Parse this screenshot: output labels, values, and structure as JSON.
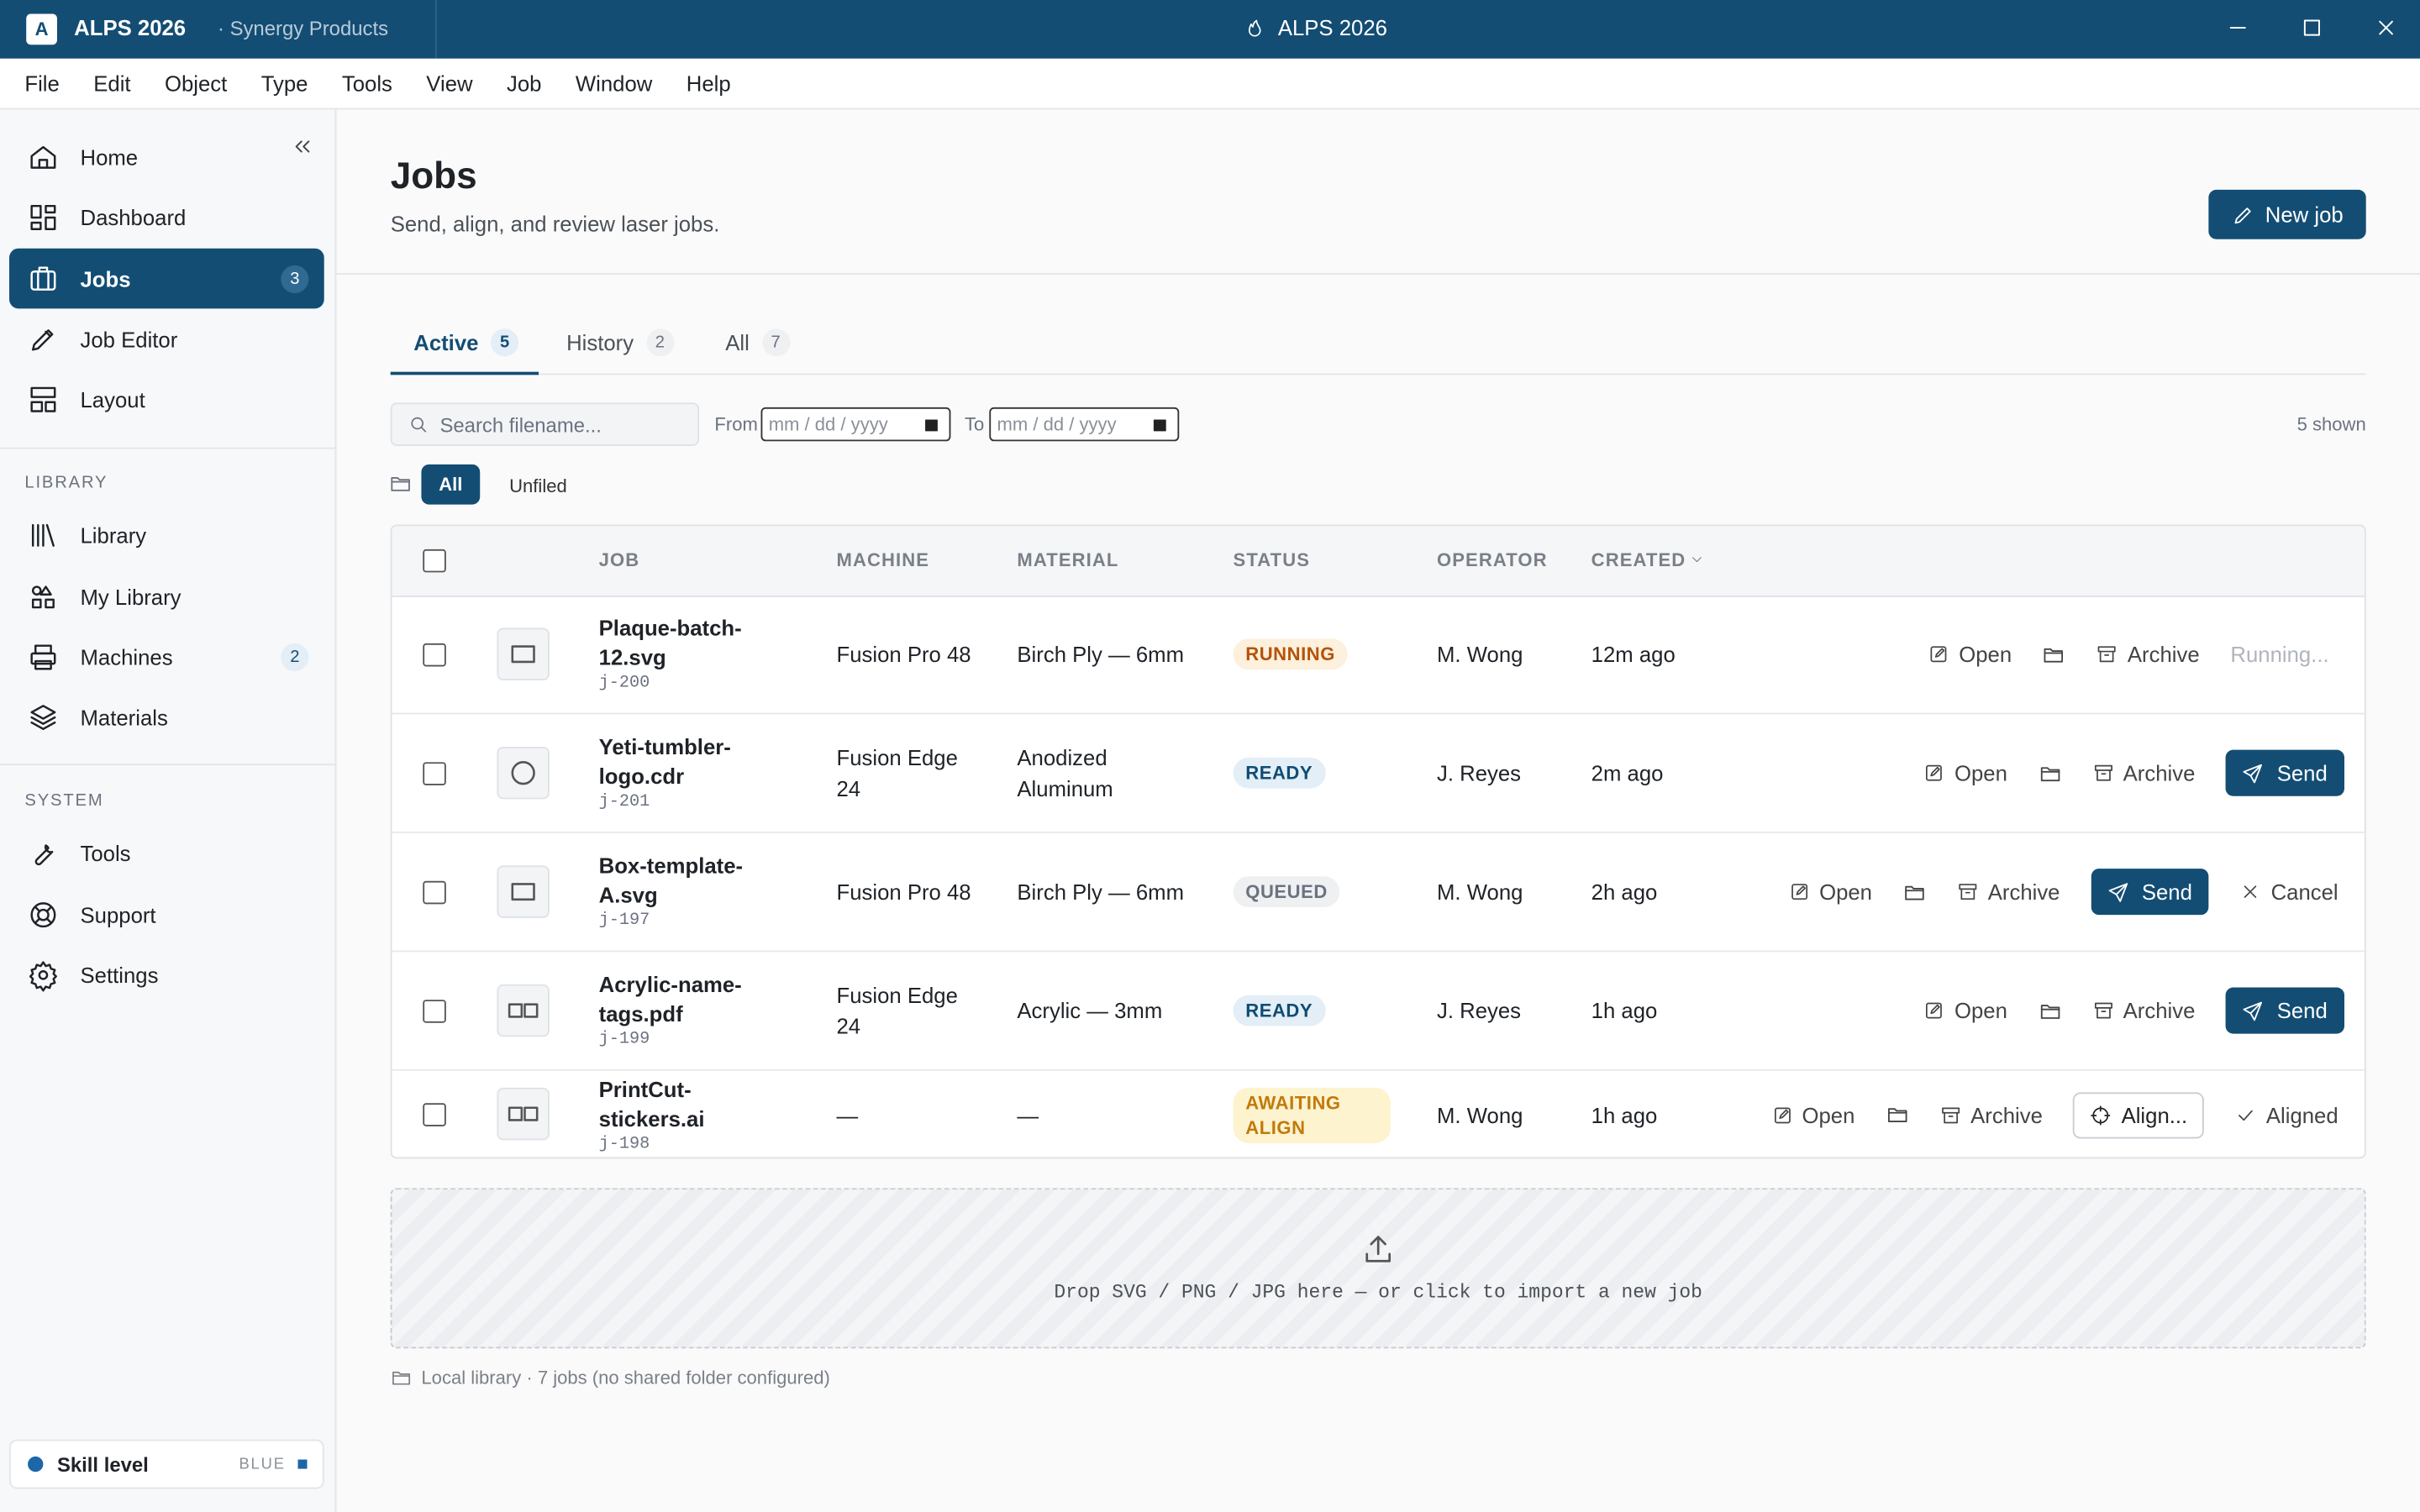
{
  "titlebar": {
    "app_badge": "A",
    "app_name": "ALPS 2026",
    "org": "· Synergy Products",
    "window_title": "ALPS 2026"
  },
  "menu": [
    "File",
    "Edit",
    "Object",
    "Type",
    "Tools",
    "View",
    "Job",
    "Window",
    "Help"
  ],
  "sidebar": {
    "nav": [
      {
        "label": "Home"
      },
      {
        "label": "Dashboard"
      },
      {
        "label": "Jobs",
        "badge": 3
      },
      {
        "label": "Job Editor"
      },
      {
        "label": "Layout"
      }
    ],
    "library_heading": "LIBRARY",
    "library": [
      {
        "label": "Library"
      },
      {
        "label": "My Library"
      },
      {
        "label": "Machines",
        "badge": 2
      },
      {
        "label": "Materials"
      }
    ],
    "system_heading": "SYSTEM",
    "system": [
      {
        "label": "Tools"
      },
      {
        "label": "Support"
      },
      {
        "label": "Settings"
      }
    ],
    "skill": {
      "label": "Skill level",
      "value": "BLUE"
    }
  },
  "header": {
    "title": "Jobs",
    "subtitle": "Send, align, and review laser jobs.",
    "new_job": "New job"
  },
  "tabs": [
    {
      "label": "Active",
      "count": 5
    },
    {
      "label": "History",
      "count": 2
    },
    {
      "label": "All",
      "count": 7
    }
  ],
  "filters": {
    "search_placeholder": "Search filename...",
    "from": "From",
    "to": "To",
    "date_placeholder": "mm / dd / yyyy",
    "shown": "5 shown",
    "folders": [
      "All",
      "Unfiled"
    ]
  },
  "table": {
    "columns": [
      "JOB",
      "MACHINE",
      "MATERIAL",
      "STATUS",
      "OPERATOR",
      "CREATED"
    ],
    "rows": [
      {
        "name": "Plaque-batch-12.svg",
        "id": "j-200",
        "thumb": "rect",
        "machine": "Fusion Pro 48",
        "material": "Birch Ply — 6mm",
        "status": "RUNNING",
        "status_color": "#b45309",
        "status_bg": "#fdf0dc",
        "operator": "M. Wong",
        "created": "12m ago",
        "actions": [
          {
            "kind": "link",
            "label": "Open"
          },
          {
            "kind": "folder"
          },
          {
            "kind": "archive",
            "label": "Archive"
          },
          {
            "kind": "muted",
            "label": "Running..."
          }
        ]
      },
      {
        "name": "Yeti-tumbler-logo.cdr",
        "id": "j-201",
        "thumb": "circle",
        "machine": "Fusion Edge 24",
        "material": "Anodized Aluminum",
        "status": "READY",
        "status_color": "#0f4c75",
        "status_bg": "#e3eef6",
        "operator": "J. Reyes",
        "created": "2m ago",
        "actions": [
          {
            "kind": "link",
            "label": "Open"
          },
          {
            "kind": "folder"
          },
          {
            "kind": "archive",
            "label": "Archive"
          },
          {
            "kind": "primary",
            "label": "Send"
          }
        ]
      },
      {
        "name": "Box-template-A.svg",
        "id": "j-197",
        "thumb": "rect",
        "machine": "Fusion Pro 48",
        "material": "Birch Ply — 6mm",
        "status": "QUEUED",
        "status_color": "#6b7280",
        "status_bg": "#eef0f2",
        "operator": "M. Wong",
        "created": "2h ago",
        "actions": [
          {
            "kind": "link",
            "label": "Open"
          },
          {
            "kind": "folder"
          },
          {
            "kind": "archive",
            "label": "Archive"
          },
          {
            "kind": "primary",
            "label": "Send"
          },
          {
            "kind": "cancel",
            "label": "Cancel"
          }
        ]
      },
      {
        "name": "Acrylic-name-tags.pdf",
        "id": "j-199",
        "thumb": "double",
        "machine": "Fusion Edge 24",
        "material": "Acrylic — 3mm",
        "status": "READY",
        "status_color": "#0f4c75",
        "status_bg": "#e3eef6",
        "operator": "J. Reyes",
        "created": "1h ago",
        "actions": [
          {
            "kind": "link",
            "label": "Open"
          },
          {
            "kind": "folder"
          },
          {
            "kind": "archive",
            "label": "Archive"
          },
          {
            "kind": "primary",
            "label": "Send"
          }
        ]
      },
      {
        "name": "PrintCut-stickers.ai",
        "id": "j-198",
        "thumb": "double",
        "machine": "—",
        "material": "—",
        "status": "AWAITING ALIGN",
        "status_color": "#c27a0a",
        "status_bg": "#fdf3cf",
        "operator": "M. Wong",
        "created": "1h ago",
        "actions": [
          {
            "kind": "link",
            "label": "Open"
          },
          {
            "kind": "folder"
          },
          {
            "kind": "archive",
            "label": "Archive"
          },
          {
            "kind": "outline",
            "label": "Align..."
          },
          {
            "kind": "check",
            "label": "Aligned"
          }
        ]
      }
    ]
  },
  "dropzone": "Drop SVG / PNG / JPG here — or click to import a new job",
  "footer": "Local library · 7 jobs (no shared folder configured)"
}
